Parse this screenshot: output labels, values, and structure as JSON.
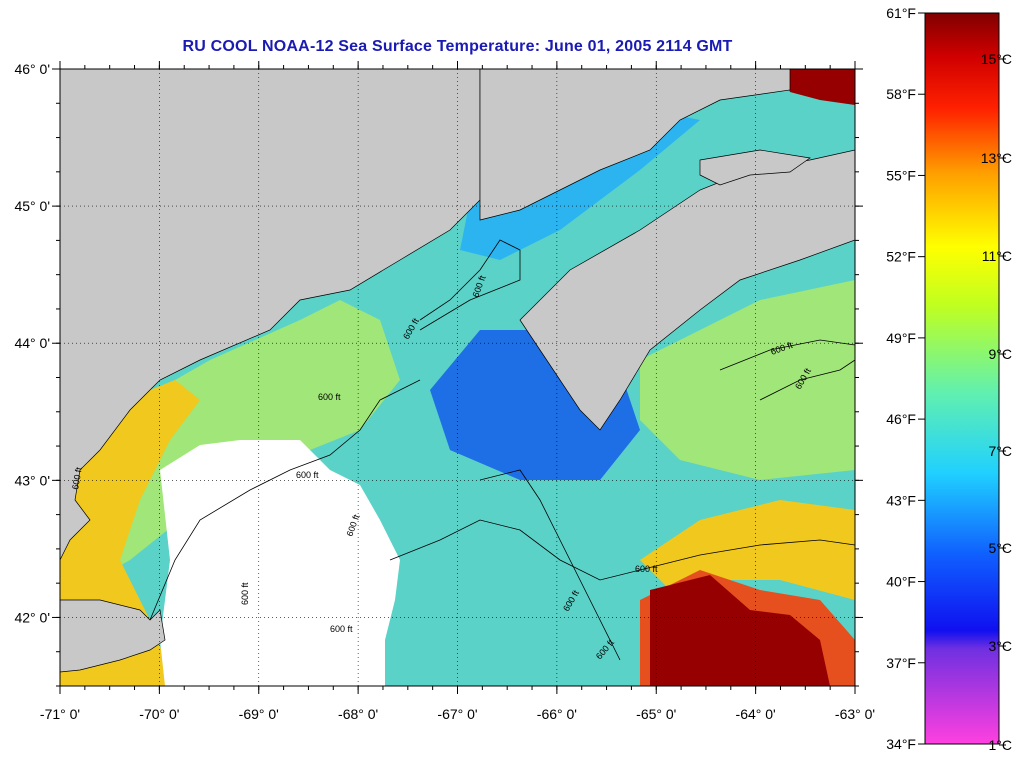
{
  "title": "RU COOL  NOAA-12  Sea Surface Temperature:  June 01, 2005 2114 GMT",
  "map": {
    "lat_ticks": [
      {
        "value": 46,
        "label": "46° 0'"
      },
      {
        "value": 45,
        "label": "45° 0'"
      },
      {
        "value": 44,
        "label": "44° 0'"
      },
      {
        "value": 43,
        "label": "43° 0'"
      },
      {
        "value": 42,
        "label": "42° 0'"
      }
    ],
    "lon_ticks": [
      {
        "value": -71,
        "label": "-71° 0'"
      },
      {
        "value": -70,
        "label": "-70° 0'"
      },
      {
        "value": -69,
        "label": "-69° 0'"
      },
      {
        "value": -68,
        "label": "-68° 0'"
      },
      {
        "value": -67,
        "label": "-67° 0'"
      },
      {
        "value": -66,
        "label": "-66° 0'"
      },
      {
        "value": -65,
        "label": "-65° 0'"
      },
      {
        "value": -64,
        "label": "-64° 0'"
      },
      {
        "value": -63,
        "label": "-63° 0'"
      }
    ],
    "lat_range": [
      41.5,
      46.0
    ],
    "lon_range": [
      -71.0,
      -63.0
    ],
    "contour_label": "600 ft",
    "colors": {
      "land": "#c8c8c8",
      "cloud": "#ffffff",
      "cold": "#1e6ee6",
      "cool": "#2cb4f0",
      "mid": "#5ad2c8",
      "mild": "#a0e678",
      "warm": "#f0c81e",
      "hot": "#e6501e",
      "hottest": "#960000"
    }
  },
  "colorbar": {
    "fahrenheit": [
      "61°F",
      "58°F",
      "55°F",
      "52°F",
      "49°F",
      "46°F",
      "43°F",
      "40°F",
      "37°F",
      "34°F"
    ],
    "celsius": [
      "15°C",
      "13°C",
      "11°C",
      "9°C",
      "7°C",
      "5°C",
      "3°C",
      "1°C"
    ]
  }
}
